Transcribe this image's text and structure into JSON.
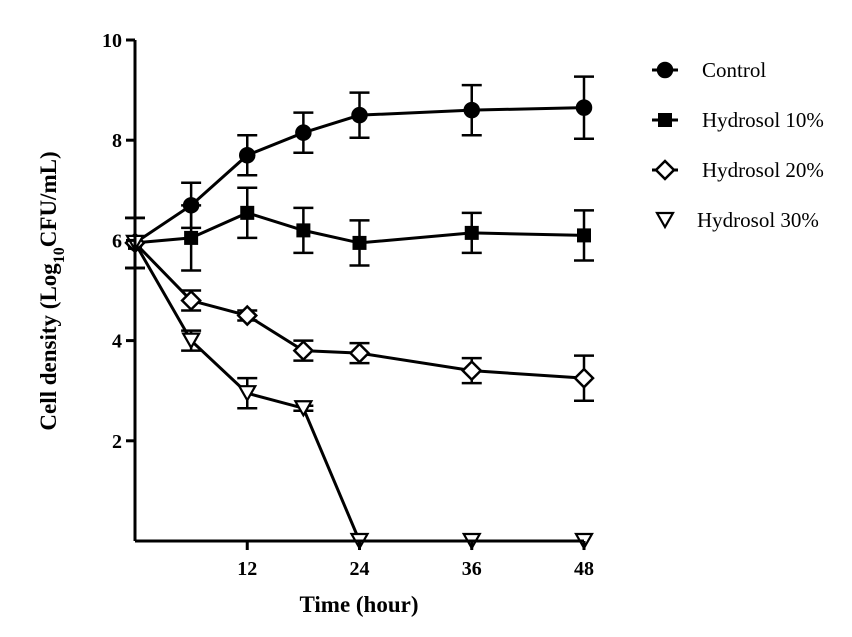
{
  "chart_data": {
    "type": "line",
    "title": "",
    "xlabel": "Time (hour)",
    "ylabel_main": "Cell density (Log",
    "ylabel_sub": "10",
    "ylabel_tail": "CFU/mL)",
    "xlim": [
      0,
      48
    ],
    "ylim": [
      0,
      10
    ],
    "xticks": [
      12,
      24,
      36,
      48
    ],
    "yticks": [
      2,
      4,
      6,
      8,
      10
    ],
    "grid": false,
    "legend_position": "right",
    "x": [
      0,
      6,
      12,
      18,
      24,
      36,
      48
    ],
    "series": [
      {
        "name": "Control",
        "marker": "circle-filled",
        "values": [
          5.95,
          6.7,
          7.7,
          8.15,
          8.5,
          8.6,
          8.65
        ],
        "errors": [
          0.5,
          0.45,
          0.4,
          0.4,
          0.45,
          0.5,
          0.62
        ]
      },
      {
        "name": "Hydrosol 10%",
        "marker": "square-filled",
        "values": [
          5.95,
          6.05,
          6.55,
          6.2,
          5.95,
          6.15,
          6.1
        ],
        "errors": [
          0.5,
          0.65,
          0.5,
          0.45,
          0.45,
          0.4,
          0.5
        ]
      },
      {
        "name": "Hydrosol 20%",
        "marker": "diamond-open",
        "values": [
          5.95,
          4.8,
          4.5,
          3.8,
          3.75,
          3.4,
          3.25
        ],
        "errors": [
          0.5,
          0.2,
          0.1,
          0.2,
          0.2,
          0.25,
          0.45
        ]
      },
      {
        "name": "Hydrosol 30%",
        "marker": "triangle-down-open",
        "values": [
          5.95,
          4.0,
          2.95,
          2.65,
          0.0,
          0.0,
          0.0
        ],
        "errors": [
          0.5,
          0.2,
          0.3,
          0.05,
          0.0,
          0.0,
          0.0
        ]
      }
    ]
  }
}
